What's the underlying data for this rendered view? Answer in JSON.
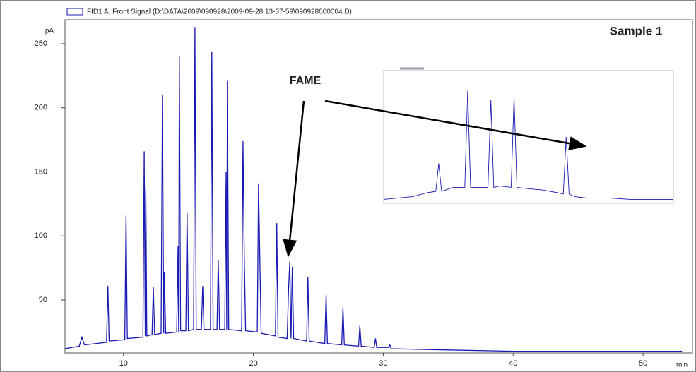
{
  "chart_data": [
    {
      "type": "line",
      "legend": "FID1 A, Front Signal (D:\\DATA\\2009\\090928\\2009-09-28 13-37-59\\090928000004.D)",
      "annotations": [
        "Sample 1",
        "FAME"
      ],
      "xlabel": "min",
      "ylabel": "pA",
      "xlim": [
        5.5,
        53.8
      ],
      "ylim": [
        8.7,
        268.7
      ],
      "xticks": [
        10,
        20,
        30,
        40,
        50
      ],
      "yticks": [
        50,
        100,
        150,
        200,
        250
      ],
      "x": [
        5.0,
        6.6,
        6.8,
        7.0,
        8.7,
        8.8,
        8.9,
        10.1,
        10.2,
        10.3,
        11.5,
        11.6,
        11.68,
        11.72,
        11.8,
        12.2,
        12.3,
        12.4,
        12.9,
        13.0,
        13.1,
        13.15,
        13.25,
        14.1,
        14.2,
        14.25,
        14.3,
        14.4,
        14.8,
        14.9,
        15.0,
        15.4,
        15.5,
        15.6,
        16.0,
        16.1,
        16.2,
        16.7,
        16.8,
        16.9,
        17.2,
        17.3,
        17.4,
        17.8,
        17.9,
        17.95,
        18.0,
        18.1,
        19.1,
        19.2,
        19.3,
        19.4,
        20.3,
        20.4,
        20.5,
        20.6,
        21.7,
        21.8,
        21.9,
        22.6,
        22.7,
        22.8,
        22.9,
        23.0,
        23.1,
        24.1,
        24.2,
        24.3,
        25.5,
        25.6,
        25.7,
        26.8,
        26.9,
        27.0,
        28.1,
        28.2,
        28.3,
        29.3,
        29.4,
        29.5,
        30.4,
        30.5,
        30.6,
        35,
        40,
        53
      ],
      "series": [
        {
          "color": "#1a1ab4",
          "values": [
            12,
            14,
            21,
            15,
            17,
            61,
            18,
            19,
            116,
            20,
            21,
            166,
            22,
            137,
            22,
            23,
            60,
            23,
            24,
            210,
            24,
            72,
            24,
            25,
            92,
            25,
            240,
            26,
            26,
            118,
            26,
            27,
            263,
            27,
            27,
            61,
            27,
            27,
            244,
            27,
            27,
            81,
            27,
            27,
            150,
            27,
            221,
            27,
            26,
            174,
            85,
            26,
            25,
            141,
            80,
            24,
            22,
            110,
            21,
            20,
            55,
            80,
            20,
            76,
            20,
            18,
            68,
            18,
            16,
            54,
            16,
            15,
            44,
            15,
            14,
            30,
            14,
            13,
            20,
            13,
            13,
            15,
            12,
            11,
            10,
            10
          ]
        }
      ]
    },
    {
      "type": "line",
      "xlim": [
        0,
        100
      ],
      "ylim": [
        0,
        100
      ],
      "x": [
        0,
        10,
        15,
        18,
        19,
        20,
        24,
        28,
        29,
        30,
        34,
        36,
        37,
        38,
        40,
        44,
        45,
        46,
        50,
        55,
        60,
        62,
        63,
        64,
        66,
        70,
        71,
        72,
        78,
        85,
        100
      ],
      "series": [
        {
          "color": "#1a1ab4",
          "values": [
            3,
            5,
            8,
            9,
            30,
            9,
            12,
            12,
            85,
            12,
            12,
            12,
            78,
            12,
            13,
            12,
            80,
            12,
            11,
            10,
            8,
            7,
            50,
            7,
            5,
            4,
            4,
            4,
            4,
            3,
            3
          ]
        }
      ]
    }
  ]
}
